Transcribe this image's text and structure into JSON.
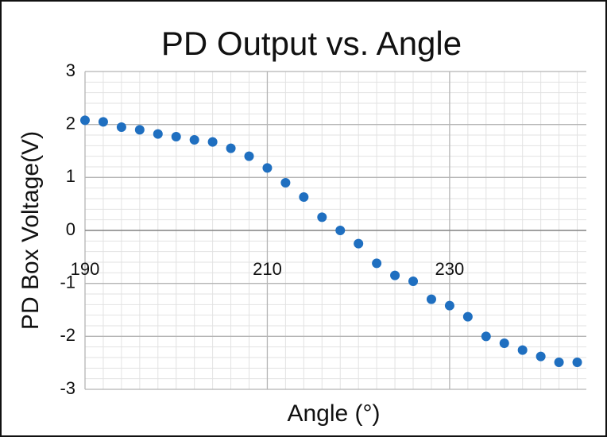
{
  "chart_data": {
    "type": "scatter",
    "title": "PD Output vs. Angle",
    "x_label": "Angle (°)",
    "y_label": "PD Box Voltage(V)",
    "x": [
      190,
      192,
      194,
      196,
      198,
      200,
      202,
      204,
      206,
      208,
      210,
      212,
      214,
      216,
      218,
      220,
      222,
      224,
      226,
      228,
      230,
      232,
      234,
      236,
      238,
      240,
      242,
      244
    ],
    "series": [
      {
        "name": "PD Output",
        "color": "#1f6fc0",
        "values": [
          2.08,
          2.05,
          1.95,
          1.9,
          1.82,
          1.77,
          1.71,
          1.67,
          1.55,
          1.4,
          1.18,
          0.9,
          0.63,
          0.25,
          0,
          -0.25,
          -0.62,
          -0.85,
          -0.96,
          -1.3,
          -1.42,
          -1.63,
          -2.0,
          -2.13,
          -2.26,
          -2.38,
          -2.49,
          -2.49
        ]
      }
    ],
    "xlim": [
      190,
      245
    ],
    "xticks": [
      190,
      210,
      230
    ],
    "ylim": [
      -3,
      3
    ],
    "yticks": [
      3,
      2,
      1,
      0,
      -1,
      -2,
      -3
    ],
    "grid": true
  }
}
